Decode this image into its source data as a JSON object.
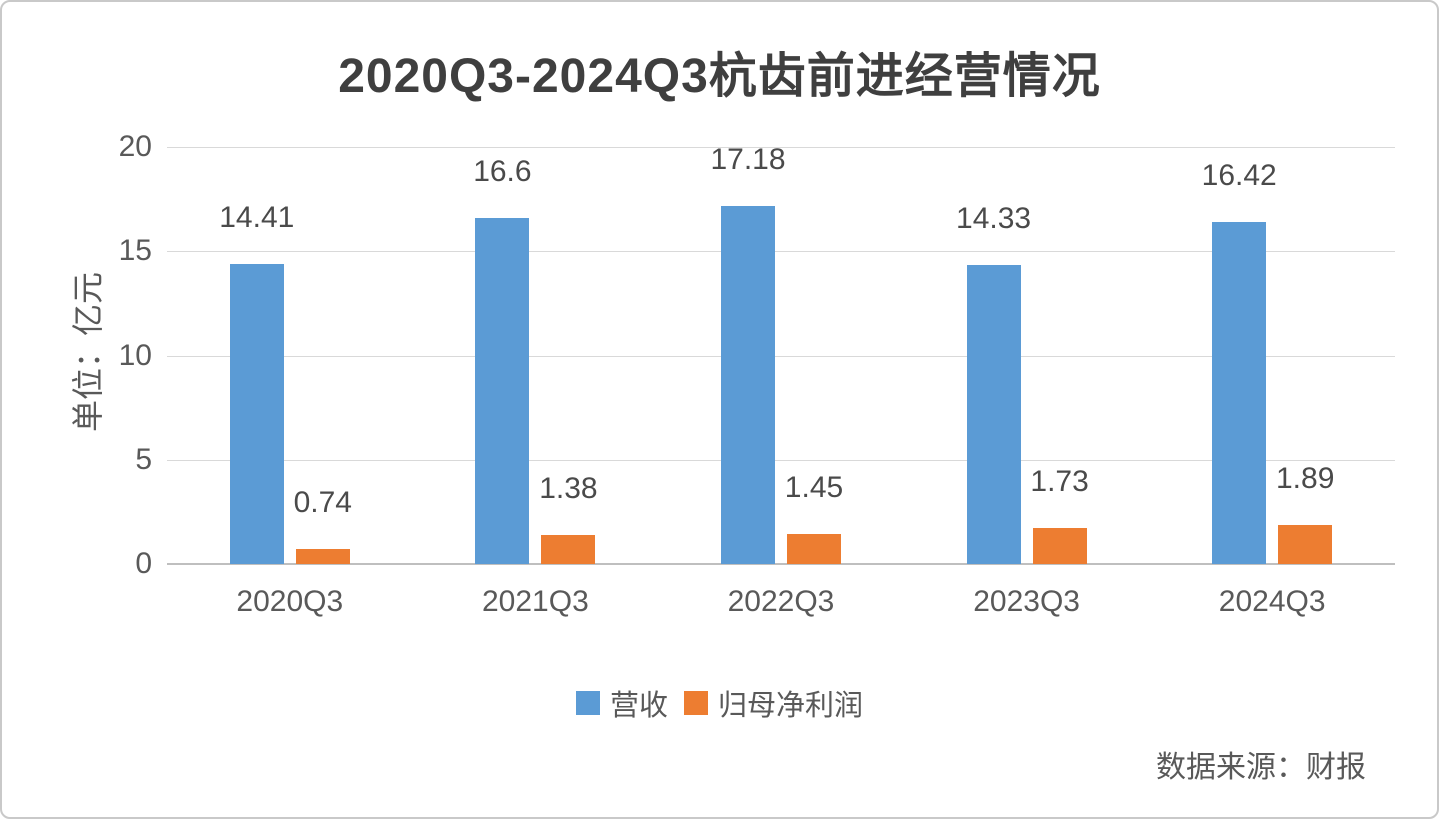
{
  "page": {
    "background": "#ffffff",
    "border_color": "#c9c9c9"
  },
  "chart_data": {
    "type": "bar",
    "title": "2020Q3-2024Q3杭齿前进经营情况",
    "unit_label": "单位：亿元",
    "categories": [
      "2020Q3",
      "2021Q3",
      "2022Q3",
      "2023Q3",
      "2024Q3"
    ],
    "series": [
      {
        "name": "营收",
        "color": "#5B9BD5",
        "values": [
          14.41,
          16.6,
          17.18,
          14.33,
          16.42
        ]
      },
      {
        "name": "归母净利润",
        "color": "#ED7D31",
        "values": [
          0.74,
          1.38,
          1.45,
          1.73,
          1.89
        ]
      }
    ],
    "y_axis": {
      "min": 0,
      "max": 20,
      "ticks": [
        0,
        5,
        10,
        15,
        20
      ]
    },
    "grid": true,
    "legend_position": "bottom",
    "source_note": "数据来源：财报",
    "text_color": "#595959",
    "gridline_color": "#d9d9d9"
  }
}
